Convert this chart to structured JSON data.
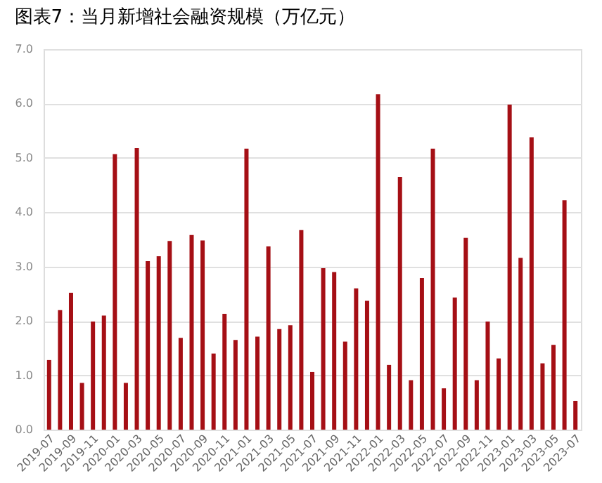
{
  "chart_data": {
    "type": "bar",
    "title": "图表7：当月新增社会融资规模（万亿元）",
    "categories": [
      "2019-07",
      null,
      "2019-09",
      null,
      "2019-11",
      null,
      "2020-01",
      null,
      "2020-03",
      null,
      "2020-05",
      null,
      "2020-07",
      null,
      "2020-09",
      null,
      "2020-11",
      null,
      "2021-01",
      null,
      "2021-03",
      null,
      "2021-05",
      null,
      "2021-07",
      null,
      "2021-09",
      null,
      "2021-11",
      null,
      "2022-01",
      null,
      "2022-03",
      null,
      "2022-05",
      null,
      "2022-07",
      null,
      "2022-09",
      null,
      "2022-11",
      null,
      "2023-01",
      null,
      "2023-03",
      null,
      "2023-05",
      null,
      "2023-07"
    ],
    "values": [
      1.28,
      2.2,
      2.52,
      0.86,
      1.99,
      2.1,
      5.07,
      0.86,
      5.18,
      3.1,
      3.19,
      3.47,
      1.69,
      3.58,
      3.48,
      1.4,
      2.13,
      1.65,
      5.17,
      1.71,
      3.37,
      1.85,
      1.92,
      3.67,
      1.06,
      2.97,
      2.9,
      1.62,
      2.6,
      2.37,
      6.17,
      1.19,
      4.65,
      0.91,
      2.79,
      5.17,
      0.76,
      2.43,
      3.53,
      0.91,
      1.99,
      1.31,
      5.98,
      3.16,
      5.38,
      1.22,
      1.56,
      4.22,
      0.53
    ],
    "color": "#a50f15",
    "ylim": [
      0,
      7
    ],
    "yticks": [
      {
        "value": 0,
        "label": "0.0"
      },
      {
        "value": 1,
        "label": "1.0"
      },
      {
        "value": 2,
        "label": "2.0"
      },
      {
        "value": 3,
        "label": "3.0"
      },
      {
        "value": 4,
        "label": "4.0"
      },
      {
        "value": 5,
        "label": "5.0"
      },
      {
        "value": 6,
        "label": "6.0"
      },
      {
        "value": 7,
        "label": "7.0"
      }
    ],
    "grid": "y"
  }
}
